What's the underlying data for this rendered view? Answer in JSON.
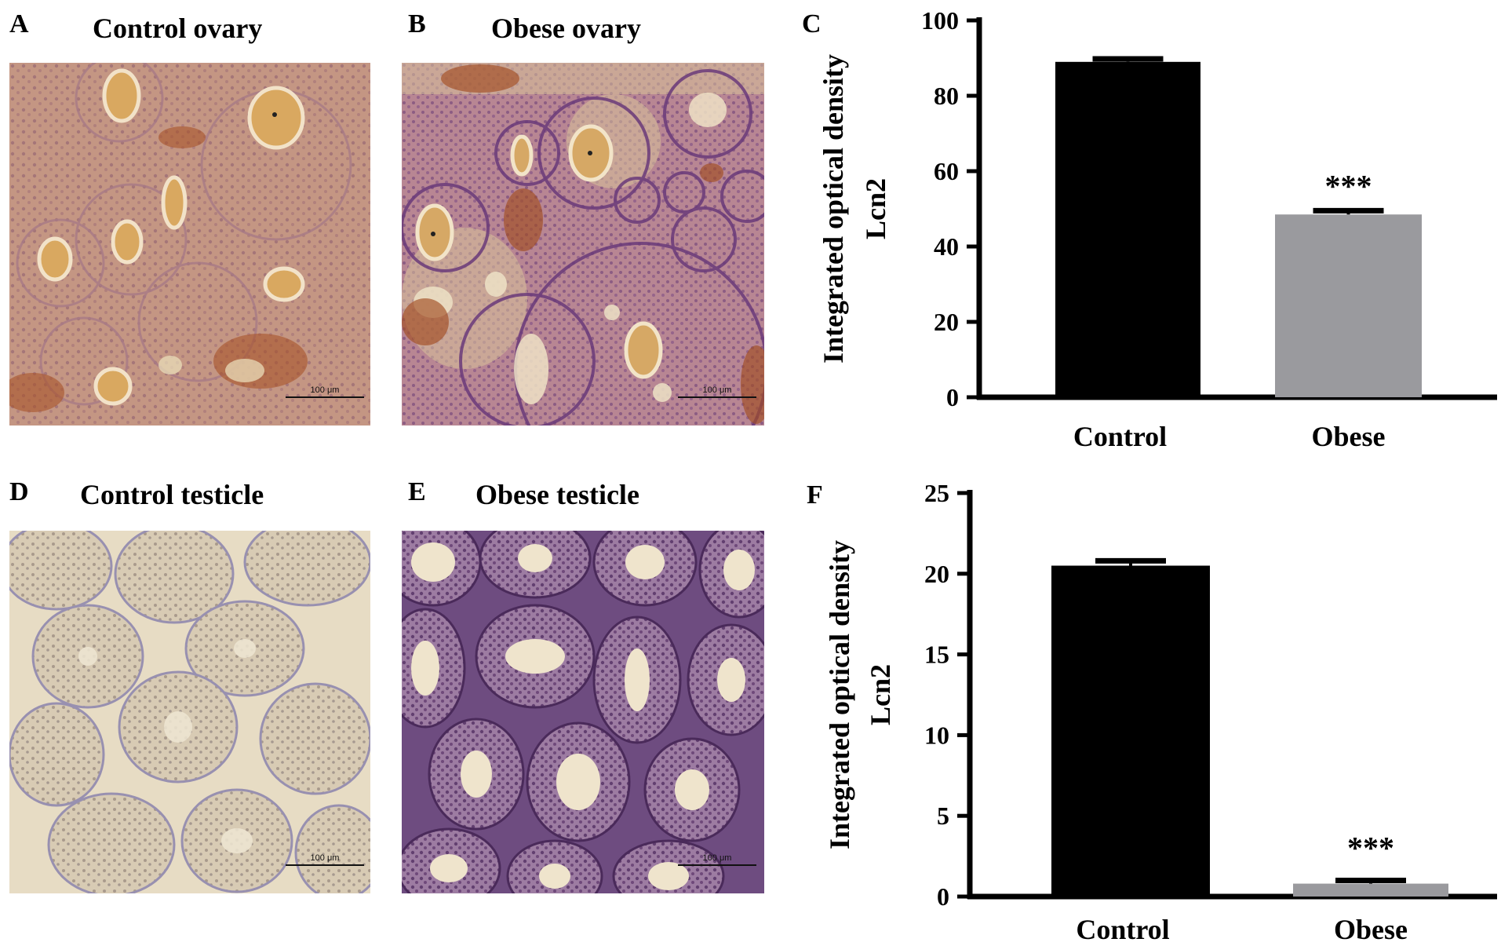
{
  "panels": {
    "A": {
      "letter": "A",
      "title": "Control ovary",
      "scale_bar": "100 μm"
    },
    "B": {
      "letter": "B",
      "title": "Obese ovary",
      "scale_bar": "100 μm"
    },
    "C": {
      "letter": "C"
    },
    "D": {
      "letter": "D",
      "title": "Control testicle",
      "scale_bar": "100 μm"
    },
    "E": {
      "letter": "E",
      "title": "Obese testicle",
      "scale_bar": "100 μm"
    },
    "F": {
      "letter": "F"
    }
  },
  "colors": {
    "control_bar": "#000000",
    "obese_bar": "#9a9a9e",
    "ovary_tissue": "#c79a86",
    "testicle_tissue": "#d8ccb8",
    "obese_testicle_tissue": "#7e5a8c"
  },
  "chart_data": [
    {
      "panel": "C",
      "type": "bar",
      "categories": [
        "Control",
        "Obese"
      ],
      "values": [
        89,
        48.5
      ],
      "errors": [
        0.8,
        1.0
      ],
      "ylabel_line1": "Integrated optical density",
      "ylabel_line2": "Lcn2",
      "ylim": [
        0,
        100
      ],
      "yticks": [
        0,
        20,
        40,
        60,
        80,
        100
      ],
      "annotation": "***",
      "annotation_category": "Obese"
    },
    {
      "panel": "F",
      "type": "bar",
      "categories": [
        "Control",
        "Obese"
      ],
      "values": [
        20.5,
        0.8
      ],
      "errors": [
        0.3,
        0.2
      ],
      "ylabel_line1": "Integrated optical density",
      "ylabel_line2": "Lcn2",
      "ylim": [
        0,
        25
      ],
      "yticks": [
        0,
        5,
        10,
        15,
        20,
        25
      ],
      "annotation": "***",
      "annotation_category": "Obese"
    }
  ]
}
